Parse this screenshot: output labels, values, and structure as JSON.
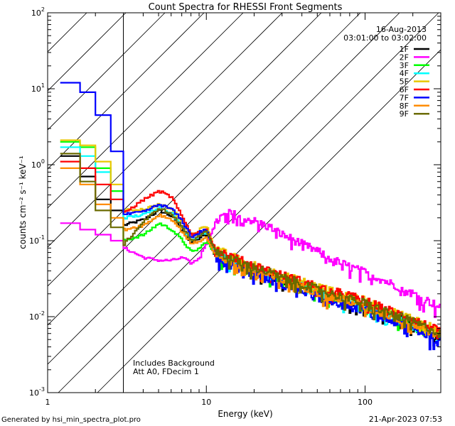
{
  "chart_data": {
    "type": "line",
    "title": "Count Spectra for RHESSI Front Segments",
    "xlabel": "Energy (keV)",
    "ylabel": "counts cm⁻² s⁻¹ keV⁻¹",
    "xscale": "log",
    "yscale": "log",
    "xlim": [
      1,
      300
    ],
    "ylim": [
      0.001,
      100
    ],
    "x_ticks": [
      {
        "value": 1,
        "label": "1"
      },
      {
        "value": 10,
        "label": "10"
      },
      {
        "value": 100,
        "label": "100"
      }
    ],
    "y_ticks": [
      {
        "value": 0.001,
        "base": "10",
        "exp": "-3"
      },
      {
        "value": 0.01,
        "base": "10",
        "exp": "-2"
      },
      {
        "value": 0.1,
        "base": "10",
        "exp": "-1"
      },
      {
        "value": 1,
        "base": "10",
        "exp": "0"
      },
      {
        "value": 10,
        "base": "10",
        "exp": "1"
      },
      {
        "value": 100,
        "base": "10",
        "exp": "2"
      }
    ],
    "excluded_region": {
      "x_from": 1,
      "x_to": 3,
      "hatched": true
    },
    "date": "16-Aug-2013",
    "time_range": "03:01:00 to 03:02:00",
    "annotations": [
      "Includes Background",
      "Att A0, FDecim 1"
    ],
    "series": [
      {
        "name": "1F",
        "color": "#000000",
        "points": [
          [
            1.2,
            1.3
          ],
          [
            1.6,
            0.7
          ],
          [
            2.0,
            0.35
          ],
          [
            2.5,
            0.25
          ],
          [
            3.0,
            0.16
          ],
          [
            4.0,
            0.19
          ],
          [
            5.0,
            0.25
          ],
          [
            6.0,
            0.21
          ],
          [
            7.0,
            0.14
          ],
          [
            8.0,
            0.09
          ],
          [
            9.0,
            0.11
          ],
          [
            10.0,
            0.12
          ],
          [
            11.0,
            0.07
          ],
          [
            13.0,
            0.055
          ],
          [
            16.0,
            0.048
          ],
          [
            20.0,
            0.04
          ],
          [
            25.0,
            0.034
          ],
          [
            30.0,
            0.03
          ],
          [
            40.0,
            0.025
          ],
          [
            50.0,
            0.021
          ],
          [
            60.0,
            0.019
          ],
          [
            80.0,
            0.016
          ],
          [
            100.0,
            0.014
          ],
          [
            130.0,
            0.011
          ],
          [
            160.0,
            0.0095
          ],
          [
            200.0,
            0.008
          ],
          [
            250.0,
            0.0065
          ],
          [
            300.0,
            0.0055
          ]
        ]
      },
      {
        "name": "2F",
        "color": "#ff00ff",
        "points": [
          [
            1.2,
            0.17
          ],
          [
            1.6,
            0.14
          ],
          [
            2.0,
            0.12
          ],
          [
            2.5,
            0.1
          ],
          [
            3.0,
            0.08
          ],
          [
            4.0,
            0.06
          ],
          [
            5.0,
            0.055
          ],
          [
            6.0,
            0.055
          ],
          [
            7.0,
            0.06
          ],
          [
            8.0,
            0.05
          ],
          [
            9.0,
            0.06
          ],
          [
            10.0,
            0.1
          ],
          [
            12.0,
            0.2
          ],
          [
            14.0,
            0.23
          ],
          [
            16.0,
            0.21
          ],
          [
            20.0,
            0.18
          ],
          [
            25.0,
            0.15
          ],
          [
            30.0,
            0.12
          ],
          [
            40.0,
            0.09
          ],
          [
            50.0,
            0.072
          ],
          [
            60.0,
            0.058
          ],
          [
            80.0,
            0.045
          ],
          [
            100.0,
            0.038
          ],
          [
            130.0,
            0.03
          ],
          [
            160.0,
            0.025
          ],
          [
            200.0,
            0.02
          ],
          [
            250.0,
            0.016
          ],
          [
            300.0,
            0.013
          ]
        ]
      },
      {
        "name": "3F",
        "color": "#00ff00",
        "points": [
          [
            1.2,
            2.0
          ],
          [
            1.6,
            1.7
          ],
          [
            2.0,
            0.9
          ],
          [
            2.5,
            0.45
          ],
          [
            3.0,
            0.1
          ],
          [
            4.0,
            0.12
          ],
          [
            5.0,
            0.17
          ],
          [
            6.0,
            0.14
          ],
          [
            7.0,
            0.1
          ],
          [
            8.0,
            0.07
          ],
          [
            9.0,
            0.08
          ],
          [
            10.0,
            0.1
          ],
          [
            11.0,
            0.07
          ],
          [
            13.0,
            0.06
          ],
          [
            16.0,
            0.05
          ],
          [
            20.0,
            0.042
          ],
          [
            25.0,
            0.036
          ],
          [
            30.0,
            0.031
          ],
          [
            40.0,
            0.026
          ],
          [
            50.0,
            0.022
          ],
          [
            60.0,
            0.019
          ],
          [
            80.0,
            0.016
          ],
          [
            100.0,
            0.014
          ],
          [
            130.0,
            0.0115
          ],
          [
            160.0,
            0.0098
          ],
          [
            200.0,
            0.0082
          ],
          [
            250.0,
            0.0068
          ],
          [
            300.0,
            0.0057
          ]
        ]
      },
      {
        "name": "4F",
        "color": "#00ffff",
        "points": [
          [
            1.2,
            1.7
          ],
          [
            1.6,
            1.3
          ],
          [
            2.0,
            0.8
          ],
          [
            2.5,
            0.35
          ],
          [
            3.0,
            0.2
          ],
          [
            4.0,
            0.22
          ],
          [
            5.0,
            0.28
          ],
          [
            6.0,
            0.23
          ],
          [
            7.0,
            0.15
          ],
          [
            8.0,
            0.1
          ],
          [
            9.0,
            0.12
          ],
          [
            10.0,
            0.13
          ],
          [
            11.0,
            0.075
          ],
          [
            13.0,
            0.06
          ],
          [
            16.0,
            0.05
          ],
          [
            20.0,
            0.042
          ],
          [
            25.0,
            0.036
          ],
          [
            30.0,
            0.031
          ],
          [
            40.0,
            0.026
          ],
          [
            50.0,
            0.022
          ],
          [
            60.0,
            0.019
          ],
          [
            80.0,
            0.016
          ],
          [
            100.0,
            0.014
          ],
          [
            130.0,
            0.0115
          ],
          [
            160.0,
            0.0098
          ],
          [
            200.0,
            0.0082
          ],
          [
            250.0,
            0.0068
          ],
          [
            300.0,
            0.0057
          ]
        ]
      },
      {
        "name": "5F",
        "color": "#e8c800",
        "points": [
          [
            1.2,
            2.1
          ],
          [
            1.6,
            1.8
          ],
          [
            2.0,
            1.1
          ],
          [
            2.5,
            0.55
          ],
          [
            3.0,
            0.25
          ],
          [
            4.0,
            0.26
          ],
          [
            5.0,
            0.3
          ],
          [
            6.0,
            0.26
          ],
          [
            7.0,
            0.18
          ],
          [
            8.0,
            0.12
          ],
          [
            9.0,
            0.14
          ],
          [
            10.0,
            0.16
          ],
          [
            11.0,
            0.085
          ],
          [
            13.0,
            0.068
          ],
          [
            16.0,
            0.056
          ],
          [
            20.0,
            0.047
          ],
          [
            25.0,
            0.04
          ],
          [
            30.0,
            0.035
          ],
          [
            40.0,
            0.029
          ],
          [
            50.0,
            0.025
          ],
          [
            60.0,
            0.022
          ],
          [
            80.0,
            0.019
          ],
          [
            100.0,
            0.016
          ],
          [
            130.0,
            0.013
          ],
          [
            160.0,
            0.011
          ],
          [
            200.0,
            0.0095
          ],
          [
            250.0,
            0.0078
          ],
          [
            300.0,
            0.0064
          ]
        ]
      },
      {
        "name": "6F",
        "color": "#ff0000",
        "points": [
          [
            1.2,
            1.1
          ],
          [
            1.6,
            0.9
          ],
          [
            2.0,
            0.55
          ],
          [
            2.5,
            0.35
          ],
          [
            3.0,
            0.23
          ],
          [
            4.0,
            0.35
          ],
          [
            5.0,
            0.45
          ],
          [
            6.0,
            0.37
          ],
          [
            7.0,
            0.2
          ],
          [
            8.0,
            0.12
          ],
          [
            9.0,
            0.13
          ],
          [
            10.0,
            0.14
          ],
          [
            11.0,
            0.085
          ],
          [
            13.0,
            0.068
          ],
          [
            16.0,
            0.056
          ],
          [
            20.0,
            0.047
          ],
          [
            25.0,
            0.04
          ],
          [
            30.0,
            0.035
          ],
          [
            40.0,
            0.029
          ],
          [
            50.0,
            0.025
          ],
          [
            60.0,
            0.022
          ],
          [
            80.0,
            0.019
          ],
          [
            100.0,
            0.016
          ],
          [
            130.0,
            0.013
          ],
          [
            160.0,
            0.011
          ],
          [
            200.0,
            0.0092
          ],
          [
            250.0,
            0.0075
          ],
          [
            300.0,
            0.0062
          ]
        ]
      },
      {
        "name": "7F",
        "color": "#0000ff",
        "points": [
          [
            1.2,
            12.0
          ],
          [
            1.6,
            9.0
          ],
          [
            2.0,
            4.5
          ],
          [
            2.5,
            1.5
          ],
          [
            3.0,
            0.22
          ],
          [
            4.0,
            0.24
          ],
          [
            5.0,
            0.3
          ],
          [
            6.0,
            0.26
          ],
          [
            7.0,
            0.18
          ],
          [
            8.0,
            0.11
          ],
          [
            9.0,
            0.13
          ],
          [
            10.0,
            0.14
          ],
          [
            11.0,
            0.07
          ],
          [
            13.0,
            0.05
          ],
          [
            16.0,
            0.043
          ],
          [
            20.0,
            0.036
          ],
          [
            25.0,
            0.03
          ],
          [
            30.0,
            0.026
          ],
          [
            40.0,
            0.022
          ],
          [
            50.0,
            0.019
          ],
          [
            60.0,
            0.016
          ],
          [
            80.0,
            0.014
          ],
          [
            100.0,
            0.012
          ],
          [
            130.0,
            0.0095
          ],
          [
            160.0,
            0.0082
          ],
          [
            200.0,
            0.0068
          ],
          [
            250.0,
            0.0056
          ],
          [
            300.0,
            0.0046
          ]
        ]
      },
      {
        "name": "8F",
        "color": "#ff8c00",
        "points": [
          [
            1.2,
            0.9
          ],
          [
            1.6,
            0.55
          ],
          [
            2.0,
            0.3
          ],
          [
            2.5,
            0.2
          ],
          [
            3.0,
            0.14
          ],
          [
            4.0,
            0.16
          ],
          [
            5.0,
            0.22
          ],
          [
            6.0,
            0.19
          ],
          [
            7.0,
            0.13
          ],
          [
            8.0,
            0.09
          ],
          [
            9.0,
            0.1
          ],
          [
            10.0,
            0.11
          ],
          [
            11.0,
            0.07
          ],
          [
            13.0,
            0.056
          ],
          [
            16.0,
            0.047
          ],
          [
            20.0,
            0.04
          ],
          [
            25.0,
            0.034
          ],
          [
            30.0,
            0.03
          ],
          [
            40.0,
            0.025
          ],
          [
            50.0,
            0.021
          ],
          [
            60.0,
            0.018
          ],
          [
            80.0,
            0.016
          ],
          [
            100.0,
            0.013
          ],
          [
            130.0,
            0.011
          ],
          [
            160.0,
            0.0094
          ],
          [
            200.0,
            0.0079
          ],
          [
            250.0,
            0.0065
          ],
          [
            300.0,
            0.0054
          ]
        ]
      },
      {
        "name": "9F",
        "color": "#6b6b00",
        "points": [
          [
            1.2,
            1.4
          ],
          [
            1.6,
            0.6
          ],
          [
            2.0,
            0.25
          ],
          [
            2.5,
            0.15
          ],
          [
            3.0,
            0.09
          ],
          [
            4.0,
            0.18
          ],
          [
            5.0,
            0.27
          ],
          [
            6.0,
            0.22
          ],
          [
            7.0,
            0.15
          ],
          [
            8.0,
            0.1
          ],
          [
            9.0,
            0.12
          ],
          [
            10.0,
            0.13
          ],
          [
            11.0,
            0.08
          ],
          [
            13.0,
            0.062
          ],
          [
            16.0,
            0.052
          ],
          [
            20.0,
            0.044
          ],
          [
            25.0,
            0.038
          ],
          [
            30.0,
            0.033
          ],
          [
            40.0,
            0.027
          ],
          [
            50.0,
            0.023
          ],
          [
            60.0,
            0.02
          ],
          [
            80.0,
            0.017
          ],
          [
            100.0,
            0.015
          ],
          [
            130.0,
            0.012
          ],
          [
            160.0,
            0.0102
          ],
          [
            200.0,
            0.0085
          ],
          [
            250.0,
            0.007
          ],
          [
            300.0,
            0.0058
          ]
        ]
      }
    ]
  },
  "footer": {
    "generated_by": "Generated by hsi_min_spectra_plot.pro",
    "timestamp": "21-Apr-2023 07:53"
  }
}
